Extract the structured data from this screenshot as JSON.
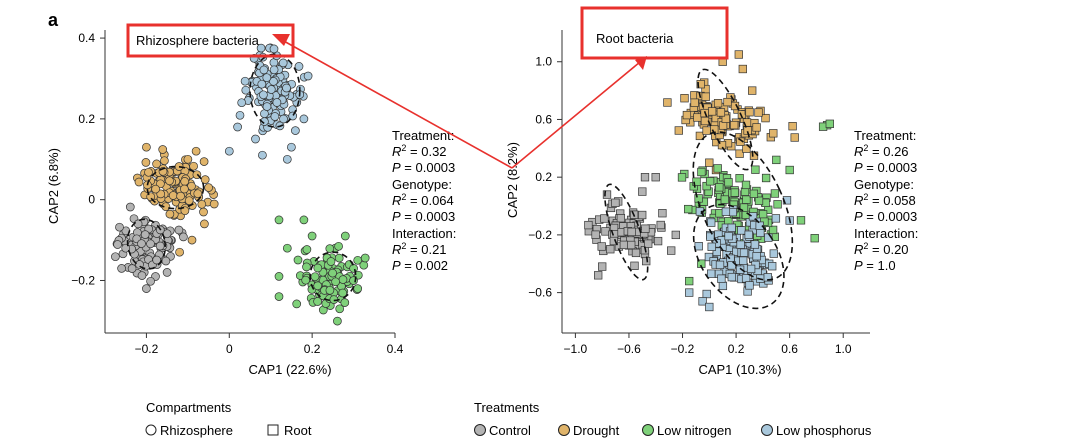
{
  "panel_letter": "a",
  "colors": {
    "control": "#b3b3b3",
    "drought": "#e0b46a",
    "low_nitrogen": "#7fd17a",
    "low_phosphorus": "#a9c8dc",
    "highlight": "#e8312d"
  },
  "chart_data": [
    {
      "type": "scatter",
      "marker": "circle",
      "title": "Rhizosphere bacteria",
      "xlabel": "CAP1 (22.6%)",
      "ylabel": "CAP2 (6.8%)",
      "xlim": [
        -0.3,
        0.4
      ],
      "ylim": [
        -0.33,
        0.42
      ],
      "xticks": [
        -0.2,
        0,
        0.2,
        0.4
      ],
      "xtick_labels": [
        "−0.2",
        "0",
        "0.2",
        "0.4"
      ],
      "yticks": [
        -0.2,
        0,
        0.2,
        0.4
      ],
      "ytick_labels": [
        "−0.2",
        "0",
        "0.2",
        "0.4"
      ],
      "stats": [
        {
          "label": "Treatment:",
          "r2": "0.32",
          "p": "0.0003"
        },
        {
          "label": "Genotype:",
          "r2": "0.064",
          "p": "0.0003"
        },
        {
          "label": "Interaction:",
          "r2": "0.21",
          "p": "0.002"
        }
      ],
      "series": [
        {
          "name": "Control",
          "color_key": "control",
          "center": [
            -0.2,
            -0.11
          ],
          "spread": [
            0.035,
            0.032
          ],
          "tilt": -0.5,
          "n": 110,
          "outliers": [
            [
              -0.26,
              -0.17
            ],
            [
              -0.25,
              -0.12
            ],
            [
              -0.2,
              -0.22
            ],
            [
              -0.15,
              -0.18
            ],
            [
              -0.22,
              -0.06
            ]
          ]
        },
        {
          "name": "Drought",
          "color_key": "drought",
          "center": [
            -0.13,
            0.03
          ],
          "spread": [
            0.045,
            0.03
          ],
          "tilt": -0.35,
          "n": 120,
          "outliers": [
            [
              -0.2,
              0.13
            ],
            [
              -0.08,
              0.12
            ],
            [
              -0.05,
              0.03
            ],
            [
              -0.06,
              -0.06
            ],
            [
              -0.09,
              -0.1
            ],
            [
              -0.12,
              -0.13
            ],
            [
              -0.16,
              0.07
            ],
            [
              -0.1,
              0.1
            ]
          ]
        },
        {
          "name": "Low nitrogen",
          "color_key": "low_nitrogen",
          "center": [
            0.24,
            -0.2
          ],
          "spread": [
            0.035,
            0.035
          ],
          "tilt": -0.6,
          "n": 110,
          "outliers": [
            [
              0.12,
              -0.05
            ],
            [
              0.14,
              -0.12
            ],
            [
              0.12,
              -0.19
            ],
            [
              0.12,
              -0.24
            ],
            [
              0.18,
              -0.05
            ],
            [
              0.28,
              -0.09
            ],
            [
              0.3,
              -0.17
            ],
            [
              0.31,
              -0.22
            ],
            [
              0.2,
              -0.09
            ]
          ]
        },
        {
          "name": "Low phosphorus",
          "color_key": "low_phosphorus",
          "center": [
            0.11,
            0.27
          ],
          "spread": [
            0.032,
            0.045
          ],
          "tilt": -0.2,
          "n": 120,
          "outliers": [
            [
              0.03,
              0.24
            ],
            [
              0.02,
              0.18
            ],
            [
              0.0,
              0.12
            ],
            [
              0.17,
              0.26
            ],
            [
              0.18,
              0.2
            ],
            [
              0.15,
              0.13
            ],
            [
              0.14,
              0.1
            ],
            [
              0.06,
              0.35
            ],
            [
              0.08,
              0.11
            ]
          ]
        }
      ],
      "ellipses": [
        {
          "series": "Control",
          "center": [
            -0.2,
            -0.11
          ],
          "radii": [
            0.045,
            0.062
          ],
          "angle": -10
        },
        {
          "series": "Drought",
          "center": [
            -0.13,
            0.03
          ],
          "radii": [
            0.068,
            0.052
          ],
          "angle": 0
        },
        {
          "series": "Low nitrogen",
          "center": [
            0.25,
            -0.19
          ],
          "radii": [
            0.055,
            0.06
          ],
          "angle": 0
        },
        {
          "series": "Low phosphorus",
          "center": [
            0.11,
            0.27
          ],
          "radii": [
            0.06,
            0.09
          ],
          "angle": 0
        }
      ]
    },
    {
      "type": "scatter",
      "marker": "square",
      "title": "Root bacteria",
      "xlabel": "CAP1 (10.3%)",
      "ylabel": "CAP2 (8.2%)",
      "xlim": [
        -1.1,
        1.2
      ],
      "ylim": [
        -0.88,
        1.22
      ],
      "xticks": [
        -1.0,
        -0.6,
        -0.2,
        0.2,
        0.6,
        1.0
      ],
      "xtick_labels": [
        "−1.0",
        "−0.6",
        "−0.2",
        "0.2",
        "0.6",
        "1.0"
      ],
      "yticks": [
        -0.6,
        -0.2,
        0.2,
        0.6,
        1.0
      ],
      "ytick_labels": [
        "−0.6",
        "−0.2",
        "0.2",
        "0.6",
        "1.0"
      ],
      "stats": [
        {
          "label": "Treatment:",
          "r2": "0.26",
          "p": "0.0003"
        },
        {
          "label": "Genotype:",
          "r2": "0.058",
          "p": "0.0003"
        },
        {
          "label": "Interaction:",
          "r2": "0.20",
          "p": "1.0"
        }
      ],
      "series": [
        {
          "name": "Control",
          "color_key": "control",
          "center": [
            -0.6,
            -0.18
          ],
          "spread": [
            0.07,
            0.14
          ],
          "tilt": 1.3,
          "n": 110,
          "outliers": [
            [
              -0.83,
              -0.48
            ],
            [
              -0.8,
              -0.42
            ],
            [
              -0.5,
              0.1
            ],
            [
              -0.48,
              0.2
            ],
            [
              -0.35,
              -0.05
            ],
            [
              -0.25,
              -0.2
            ],
            [
              -0.4,
              0.2
            ]
          ]
        },
        {
          "name": "Drought",
          "color_key": "drought",
          "center": [
            0.1,
            0.6
          ],
          "spread": [
            0.08,
            0.18
          ],
          "tilt": 1.2,
          "n": 120,
          "outliers": [
            [
              0.1,
              1.0
            ],
            [
              0.22,
              1.05
            ],
            [
              0.25,
              0.95
            ],
            [
              0.32,
              0.8
            ],
            [
              0.3,
              0.65
            ],
            [
              0.0,
              0.3
            ],
            [
              0.05,
              0.25
            ]
          ]
        },
        {
          "name": "Low nitrogen",
          "color_key": "low_nitrogen",
          "center": [
            0.22,
            0.02
          ],
          "spread": [
            0.12,
            0.2
          ],
          "tilt": 1.1,
          "n": 140,
          "outliers": [
            [
              0.88,
              0.56
            ],
            [
              0.85,
              0.55
            ],
            [
              0.9,
              0.57
            ],
            [
              -0.06,
              -0.4
            ],
            [
              -0.15,
              -0.52
            ],
            [
              0.6,
              0.25
            ],
            [
              0.5,
              0.32
            ]
          ]
        },
        {
          "name": "Low phosphorus",
          "color_key": "low_phosphorus",
          "center": [
            0.22,
            -0.32
          ],
          "spread": [
            0.12,
            0.14
          ],
          "tilt": 0.9,
          "n": 140,
          "outliers": [
            [
              0.58,
              0.04
            ],
            [
              0.6,
              -0.1
            ],
            [
              -0.15,
              -0.6
            ],
            [
              -0.05,
              -0.66
            ],
            [
              0.0,
              -0.7
            ],
            [
              0.3,
              -0.55
            ]
          ]
        }
      ],
      "ellipses": [
        {
          "series": "Control",
          "center": [
            -0.62,
            -0.18
          ],
          "radii": [
            0.1,
            0.35
          ],
          "angle": -20
        },
        {
          "series": "Drought",
          "center": [
            0.12,
            0.6
          ],
          "radii": [
            0.12,
            0.38
          ],
          "angle": -25
        },
        {
          "series": "Low nitrogen",
          "center": [
            0.25,
            0.0
          ],
          "radii": [
            0.3,
            0.55
          ],
          "angle": -25
        },
        {
          "series": "Low phosphorus",
          "center": [
            0.22,
            -0.35
          ],
          "radii": [
            0.28,
            0.4
          ],
          "angle": -35
        }
      ]
    }
  ],
  "legend": {
    "compartments_title": "Compartments",
    "compartments": [
      {
        "label": "Rhizosphere",
        "marker": "circle"
      },
      {
        "label": "Root",
        "marker": "square"
      }
    ],
    "treatments_title": "Treatments",
    "treatments": [
      {
        "label": "Control",
        "color_key": "control"
      },
      {
        "label": "Drought",
        "color_key": "drought"
      },
      {
        "label": "Low nitrogen",
        "color_key": "low_nitrogen"
      },
      {
        "label": "Low phosphorus",
        "color_key": "low_phosphorus"
      }
    ]
  }
}
